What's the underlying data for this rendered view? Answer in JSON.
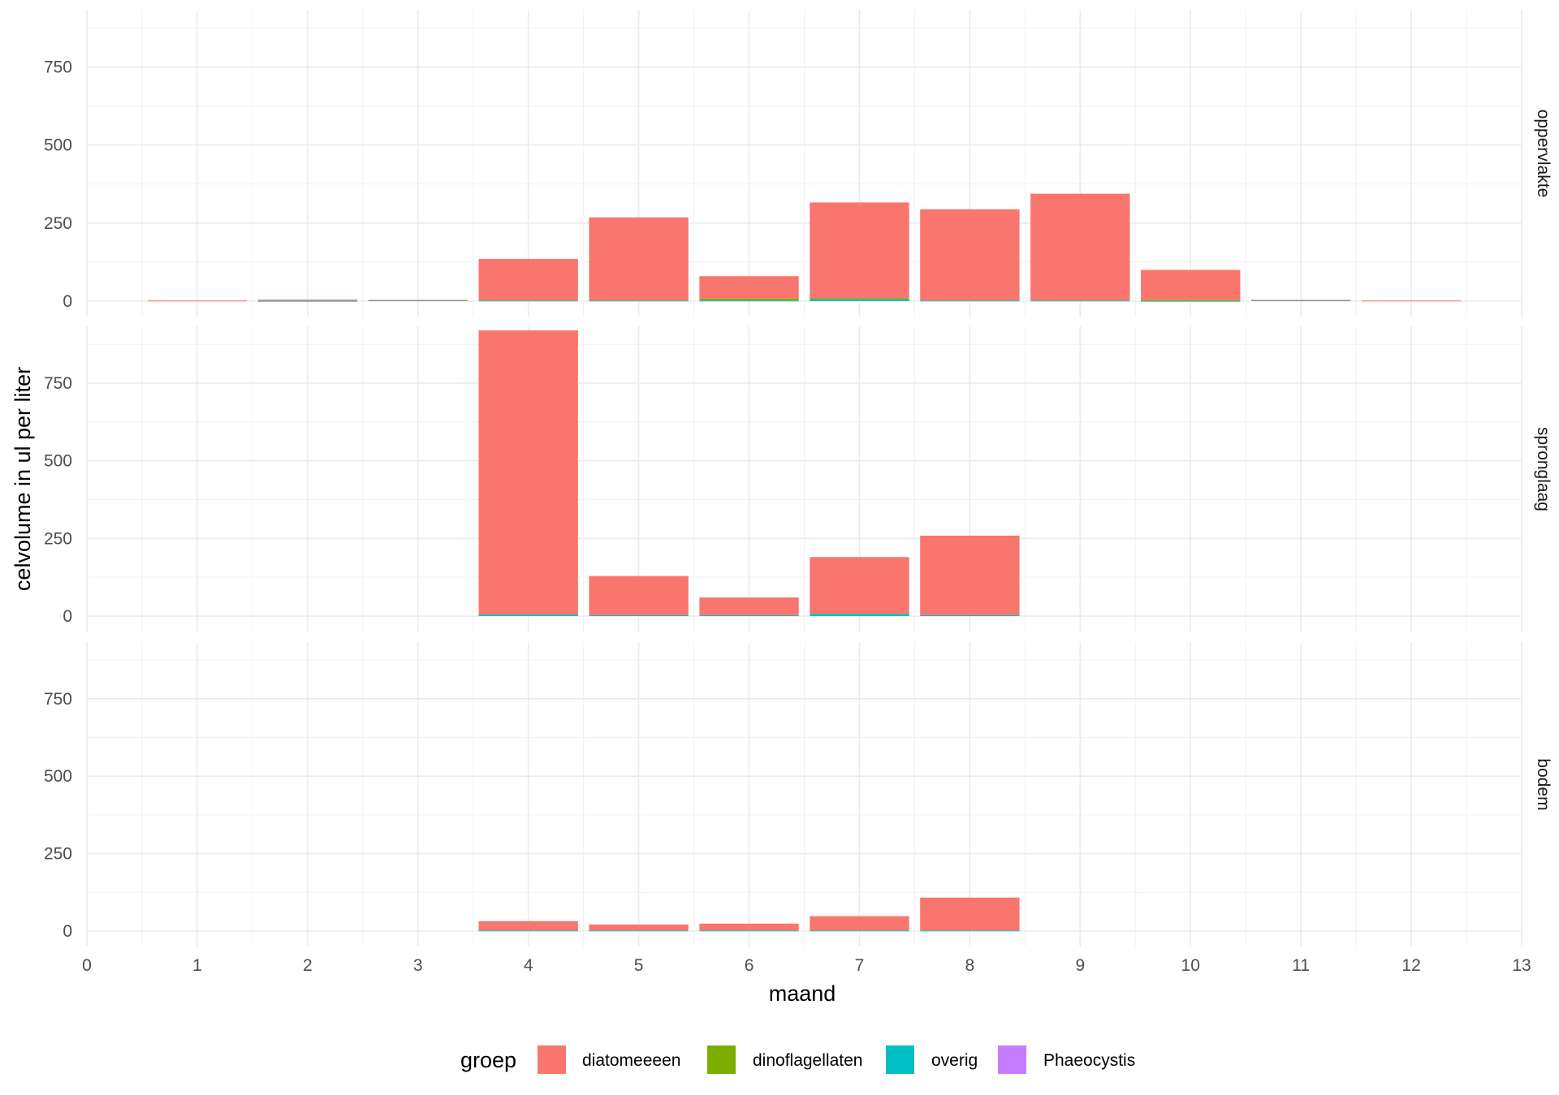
{
  "chart_data": {
    "type": "bar",
    "stacked": true,
    "xlabel": "maand",
    "ylabel": "celvolume in ul per liter",
    "xlim": [
      0,
      13
    ],
    "ylim": [
      0,
      920
    ],
    "x_ticks": [
      0,
      1,
      2,
      3,
      4,
      5,
      6,
      7,
      8,
      9,
      10,
      11,
      12,
      13
    ],
    "y_ticks": [
      0,
      250,
      500,
      750
    ],
    "legend": {
      "title": "groep",
      "position": "bottom",
      "items": [
        {
          "name": "diatomeeeen",
          "color": "#F8766D"
        },
        {
          "name": "dinoflagellaten",
          "color": "#7CAE00"
        },
        {
          "name": "overig",
          "color": "#00BFC4"
        },
        {
          "name": "Phaeocystis",
          "color": "#C77CFF"
        }
      ]
    },
    "panels": [
      {
        "label": "oppervlakte",
        "x": [
          1,
          2,
          3,
          4,
          5,
          6,
          7,
          8,
          9,
          10,
          11,
          12
        ],
        "series": [
          {
            "name": "diatomeeeen",
            "values": [
              2,
              4,
              1,
              133,
              266,
              72,
              307,
              292,
              342,
              97,
              1,
              2
            ]
          },
          {
            "name": "dinoflagellaten",
            "values": [
              0,
              0,
              0,
              0,
              0,
              6,
              3,
              0,
              0,
              2,
              0,
              0
            ]
          },
          {
            "name": "overig",
            "values": [
              0,
              1,
              3,
              2,
              2,
              2,
              6,
              2,
              2,
              1,
              3,
              0
            ]
          },
          {
            "name": "Phaeocystis",
            "values": [
              0,
              0,
              0,
              0,
              0,
              0,
              0,
              0,
              0,
              0,
              0,
              0
            ]
          }
        ]
      },
      {
        "label": "spronglaag",
        "x": [
          4,
          5,
          6,
          7,
          8
        ],
        "series": [
          {
            "name": "diatomeeeen",
            "values": [
              915,
              126,
              57,
              183,
              256
            ]
          },
          {
            "name": "dinoflagellaten",
            "values": [
              0,
              0,
              0,
              0,
              0
            ]
          },
          {
            "name": "overig",
            "values": [
              5,
              3,
              3,
              7,
              3
            ]
          },
          {
            "name": "Phaeocystis",
            "values": [
              0,
              0,
              0,
              0,
              0
            ]
          }
        ]
      },
      {
        "label": "bodem",
        "x": [
          4,
          5,
          6,
          7,
          8
        ],
        "series": [
          {
            "name": "diatomeeeen",
            "values": [
              30,
              19,
              22,
              46,
              106
            ]
          },
          {
            "name": "dinoflagellaten",
            "values": [
              0,
              0,
              0,
              0,
              0
            ]
          },
          {
            "name": "overig",
            "values": [
              2,
              2,
              2,
              2,
              2
            ]
          },
          {
            "name": "Phaeocystis",
            "values": [
              0,
              0,
              0,
              0,
              0
            ]
          }
        ]
      }
    ]
  }
}
